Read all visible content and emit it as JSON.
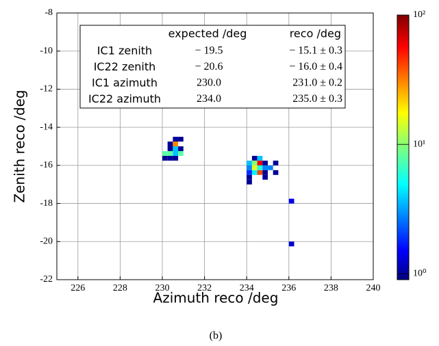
{
  "chart_data": {
    "type": "heatmap",
    "xlabel": "Azimuth reco /deg",
    "ylabel": "Zenith reco /deg",
    "caption": "(b)",
    "xlim": [
      225,
      240
    ],
    "xticks": [
      226,
      228,
      230,
      232,
      234,
      236,
      238,
      240
    ],
    "ylim": [
      -22,
      -8
    ],
    "yticks": [
      -22,
      -20,
      -18,
      -16,
      -14,
      -12,
      -10,
      -8
    ],
    "grid": true,
    "colormap": "jet",
    "color_scale": "log",
    "zlim": [
      0.9,
      100
    ],
    "zticks": [
      {
        "value": 1,
        "label": "10⁰"
      },
      {
        "value": 10,
        "label": "10¹"
      },
      {
        "value": 100,
        "label": "10²"
      }
    ],
    "x": [
      230.625,
      230.875,
      230.375,
      230.625,
      230.375,
      230.625,
      230.875,
      230.125,
      230.375,
      230.625,
      230.875,
      230.125,
      230.375,
      230.625,
      234.375,
      234.625,
      234.125,
      234.375,
      234.625,
      234.875,
      235.375,
      234.125,
      234.375,
      234.625,
      234.875,
      235.125,
      234.125,
      234.375,
      234.625,
      234.875,
      235.375,
      234.125,
      234.875,
      234.125,
      236.125,
      236.125
    ],
    "y": [
      -14.625,
      -14.625,
      -14.875,
      -14.875,
      -15.125,
      -15.125,
      -15.125,
      -15.375,
      -15.375,
      -15.375,
      -15.375,
      -15.625,
      -15.625,
      -15.625,
      -15.625,
      -15.625,
      -15.875,
      -15.875,
      -15.875,
      -15.875,
      -15.875,
      -16.125,
      -16.125,
      -16.125,
      -16.125,
      -16.125,
      -16.375,
      -16.375,
      -16.375,
      -16.375,
      -16.375,
      -16.625,
      -16.625,
      -16.875,
      -17.875,
      -20.125
    ],
    "values": [
      1,
      1,
      1,
      30,
      1,
      4,
      1,
      8,
      8,
      4,
      8,
      1,
      1,
      1,
      1,
      4,
      4,
      10,
      60,
      1,
      1,
      3,
      15,
      6,
      3,
      3,
      2,
      5,
      40,
      1,
      1,
      1,
      1,
      1,
      1.5,
      1.3
    ],
    "table": {
      "headers": [
        "expected /deg",
        "reco /deg"
      ],
      "rows": [
        [
          "IC1 zenith",
          "− 19.5",
          "− 15.1 ± 0.3"
        ],
        [
          "IC22 zenith",
          "− 20.6",
          "− 16.0 ± 0.4"
        ],
        [
          "IC1 azimuth",
          "230.0",
          "231.0 ± 0.2"
        ],
        [
          "IC22 azimuth",
          "234.0",
          "235.0 ± 0.3"
        ]
      ]
    }
  }
}
